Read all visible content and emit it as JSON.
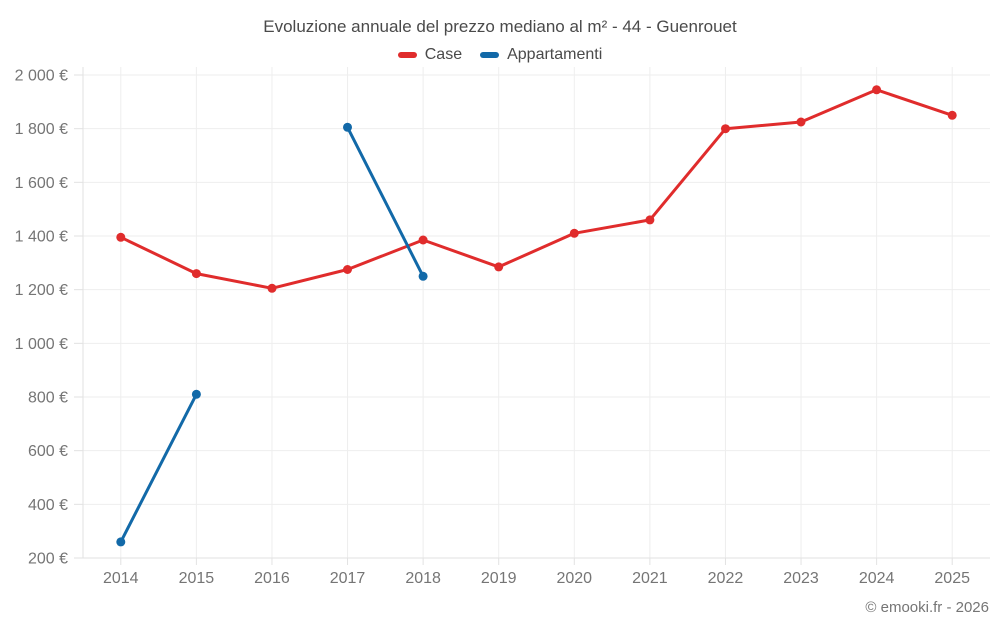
{
  "title": "Evoluzione annuale del prezzo mediano al m² - 44 - Guenrouet",
  "footer": {
    "copyright": "© emooki.fr - 2026"
  },
  "chart_data": {
    "type": "line",
    "title": "Evoluzione annuale del prezzo mediano al m² - 44 - Guenrouet",
    "categories": [
      "2014",
      "2015",
      "2016",
      "2017",
      "2018",
      "2019",
      "2020",
      "2021",
      "2022",
      "2023",
      "2024",
      "2025"
    ],
    "series": [
      {
        "name": "Case",
        "color": "#e02c2c",
        "values": [
          1395,
          1260,
          1205,
          1275,
          1385,
          1285,
          1410,
          1460,
          1800,
          1825,
          1945,
          1850
        ]
      },
      {
        "name": "Appartamenti",
        "color": "#1269a8",
        "values": [
          260,
          810,
          null,
          1805,
          1250,
          null,
          null,
          null,
          null,
          null,
          null,
          null
        ]
      }
    ],
    "xlabel": "",
    "ylabel": "",
    "ylim": [
      200,
      2000
    ],
    "y_ticks": [
      200,
      400,
      600,
      800,
      1000,
      1200,
      1400,
      1600,
      1800,
      2000
    ],
    "y_tick_labels": [
      "200 €",
      "400 €",
      "600 €",
      "800 €",
      "1 000 €",
      "1 200 €",
      "1 400 €",
      "1 600 €",
      "1 800 €",
      "2 000 €"
    ],
    "grid": true,
    "legend_position": "top"
  },
  "colors": {
    "background": "#ffffff",
    "grid": "#eeeeee",
    "axis": "#e2e2e2",
    "tick_label": "#757575",
    "title_text": "#4a4a4a",
    "case_red": "#e02c2c",
    "appartamenti_blue": "#1269a8"
  }
}
